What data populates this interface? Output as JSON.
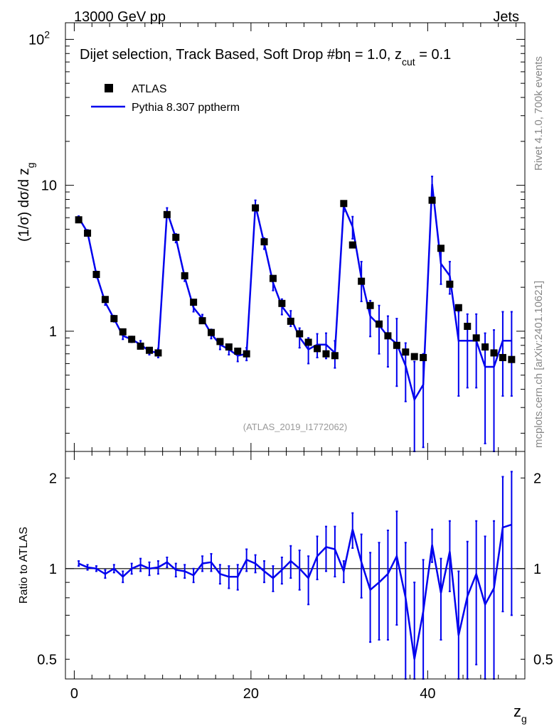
{
  "header": {
    "left": "13000 GeV pp",
    "right": "Jets"
  },
  "side_text": {
    "rivet": "Rivet 4.1.0,  700k events",
    "mcplots": "mcplots.cern.ch [arXiv:2401.10621]"
  },
  "colors": {
    "mc": "#0000ee",
    "data": "#000000"
  },
  "chart_data": [
    {
      "type": "scatter",
      "title": "Dijet selection, Track Based, Soft Drop #bη = 1.0, z",
      "title_sub": "cut",
      "title_tail": " = 0.1",
      "ylabel": "(1/σ) dσ/d z",
      "ylabel_sub": "g",
      "yscale": "log",
      "ylim": [
        0.15,
        130
      ],
      "xlim": [
        -1,
        51
      ],
      "y_ticks": [
        {
          "v": 1,
          "label": "1"
        },
        {
          "v": 10,
          "label": "10"
        },
        {
          "v": 100,
          "label": "10",
          "sup": "2"
        }
      ],
      "watermark": "(ATLAS_2019_I1772062)",
      "legend": {
        "data_label": "ATLAS",
        "mc_label": "Pythia 8.307 pptherm",
        "position": "top-left"
      },
      "x": [
        0.5,
        1.5,
        2.5,
        3.5,
        4.5,
        5.5,
        6.5,
        7.5,
        8.5,
        9.5,
        10.5,
        11.5,
        12.5,
        13.5,
        14.5,
        15.5,
        16.5,
        17.5,
        18.5,
        19.5,
        20.5,
        21.5,
        22.5,
        23.5,
        24.5,
        25.5,
        26.5,
        27.5,
        28.5,
        29.5,
        30.5,
        31.5,
        32.5,
        33.5,
        34.5,
        35.5,
        36.5,
        37.5,
        38.5,
        39.5,
        40.5,
        41.5,
        42.5,
        43.5,
        44.5,
        45.5,
        46.5,
        47.5,
        48.5,
        49.5
      ],
      "series": [
        {
          "name": "ATLAS",
          "values": [
            5.8,
            4.7,
            2.45,
            1.65,
            1.22,
            0.99,
            0.88,
            0.79,
            0.74,
            0.71,
            6.3,
            4.4,
            2.4,
            1.58,
            1.18,
            0.98,
            0.85,
            0.78,
            0.73,
            0.7,
            7.0,
            4.1,
            2.3,
            1.55,
            1.17,
            0.96,
            0.84,
            0.76,
            0.7,
            0.68,
            7.5,
            3.9,
            2.2,
            1.5,
            1.12,
            0.93,
            0.8,
            0.72,
            0.67,
            0.66,
            7.9,
            3.7,
            2.1,
            1.45,
            1.08,
            0.9,
            0.78,
            0.71,
            0.66,
            0.64
          ]
        },
        {
          "name": "Pythia 8.307 pptherm",
          "values": [
            6.0,
            4.75,
            2.45,
            1.58,
            1.22,
            0.93,
            0.88,
            0.81,
            0.73,
            0.71,
            6.6,
            4.35,
            2.35,
            1.45,
            1.22,
            0.96,
            0.81,
            0.75,
            0.68,
            0.7,
            7.3,
            4.0,
            2.15,
            1.48,
            1.23,
            0.91,
            0.75,
            0.81,
            0.81,
            0.71,
            7.2,
            5.2,
            2.3,
            1.27,
            1.1,
            0.92,
            0.82,
            0.58,
            0.34,
            0.43,
            10.2,
            2.9,
            2.4,
            0.86,
            0.86,
            0.86,
            0.57,
            0.57,
            0.86,
            0.86
          ],
          "errors": [
            0.15,
            0.2,
            0.12,
            0.07,
            0.06,
            0.05,
            0.04,
            0.05,
            0.04,
            0.05,
            0.4,
            0.3,
            0.15,
            0.09,
            0.08,
            0.07,
            0.06,
            0.06,
            0.06,
            0.07,
            0.6,
            0.35,
            0.25,
            0.18,
            0.15,
            0.14,
            0.15,
            0.15,
            0.16,
            0.15,
            0.6,
            0.9,
            0.7,
            0.35,
            0.4,
            0.35,
            0.4,
            0.25,
            0.28,
            0.27,
            1.3,
            0.8,
            0.6,
            0.5,
            0.45,
            0.45,
            0.4,
            0.45,
            0.5,
            0.5
          ]
        }
      ]
    },
    {
      "type": "line",
      "ylabel": "Ratio to ATLAS",
      "xlabel": "z",
      "xlabel_sub": "g",
      "yscale": "log",
      "ylim": [
        0.43,
        2.45
      ],
      "xlim": [
        -1,
        51
      ],
      "y_ticks": [
        {
          "v": 0.5,
          "label": "0.5"
        },
        {
          "v": 1,
          "label": "1"
        },
        {
          "v": 2,
          "label": "2"
        }
      ],
      "x_ticks": [
        0,
        20,
        40
      ],
      "reference_line": 1,
      "x": [
        0.5,
        1.5,
        2.5,
        3.5,
        4.5,
        5.5,
        6.5,
        7.5,
        8.5,
        9.5,
        10.5,
        11.5,
        12.5,
        13.5,
        14.5,
        15.5,
        16.5,
        17.5,
        18.5,
        19.5,
        20.5,
        21.5,
        22.5,
        23.5,
        24.5,
        25.5,
        26.5,
        27.5,
        28.5,
        29.5,
        30.5,
        31.5,
        32.5,
        33.5,
        34.5,
        35.5,
        36.5,
        37.5,
        38.5,
        39.5,
        40.5,
        41.5,
        42.5,
        43.5,
        44.5,
        45.5,
        46.5,
        47.5,
        48.5,
        49.5
      ],
      "series": [
        {
          "name": "Pythia 8.307 pptherm",
          "values": [
            1.04,
            1.01,
            1.0,
            0.96,
            1.0,
            0.94,
            1.0,
            1.03,
            1.0,
            1.01,
            1.05,
            0.99,
            0.98,
            0.95,
            1.04,
            1.05,
            0.96,
            0.94,
            0.94,
            1.07,
            1.04,
            0.98,
            0.93,
            0.99,
            1.06,
            1.0,
            0.93,
            1.1,
            1.18,
            1.16,
            0.98,
            1.35,
            1.05,
            0.85,
            0.9,
            0.96,
            1.1,
            0.8,
            0.5,
            0.72,
            1.2,
            0.83,
            1.14,
            0.6,
            0.81,
            0.96,
            0.76,
            0.86,
            1.37,
            1.4
          ],
          "errors": [
            0.02,
            0.02,
            0.02,
            0.03,
            0.03,
            0.04,
            0.04,
            0.05,
            0.05,
            0.05,
            0.04,
            0.05,
            0.05,
            0.05,
            0.06,
            0.07,
            0.07,
            0.08,
            0.09,
            0.09,
            0.07,
            0.08,
            0.09,
            0.1,
            0.13,
            0.15,
            0.17,
            0.18,
            0.2,
            0.22,
            0.08,
            0.18,
            0.25,
            0.28,
            0.32,
            0.38,
            0.45,
            0.42,
            0.4,
            0.35,
            0.15,
            0.25,
            0.3,
            0.38,
            0.42,
            0.48,
            0.52,
            0.58,
            0.65,
            0.7
          ]
        }
      ]
    }
  ]
}
